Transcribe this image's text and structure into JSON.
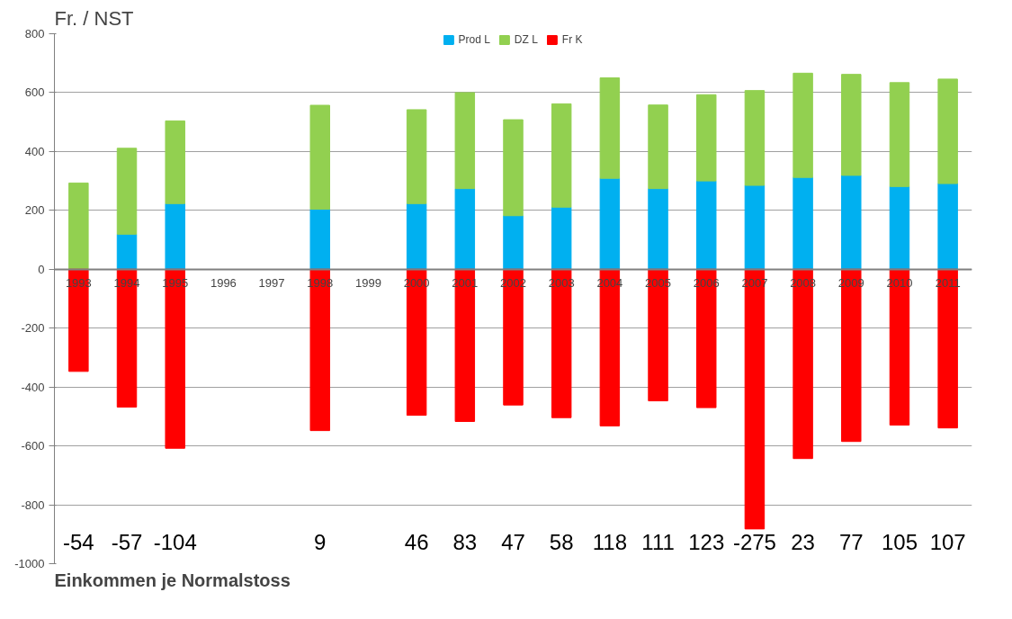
{
  "chart_data": {
    "type": "bar",
    "title": "Einkommen je Normalstoss",
    "ylabel": "Fr. / NST",
    "categories": [
      "1993",
      "1994",
      "1995",
      "1996",
      "1997",
      "1998",
      "1999",
      "2000",
      "2001",
      "2002",
      "2003",
      "2004",
      "2005",
      "2006",
      "2007",
      "2008",
      "2009",
      "2010",
      "2011"
    ],
    "stacked": true,
    "series": [
      {
        "name": "Prod L",
        "color": "#00b0f0",
        "values": [
          0,
          119,
          223,
          null,
          null,
          204,
          null,
          223,
          274,
          182,
          211,
          309,
          274,
          300,
          285,
          312,
          319,
          281,
          291
        ]
      },
      {
        "name": "DZ L",
        "color": "#92d050",
        "values": [
          293,
          292,
          281,
          null,
          null,
          353,
          null,
          319,
          326,
          326,
          351,
          341,
          284,
          293,
          322,
          354,
          343,
          353,
          355
        ]
      },
      {
        "name": "Fr K",
        "color": "#ff0000",
        "values": [
          -347,
          -468,
          -608,
          null,
          null,
          -548,
          null,
          -496,
          -517,
          -461,
          -504,
          -532,
          -447,
          -470,
          -882,
          -643,
          -585,
          -529,
          -539
        ]
      }
    ],
    "annotations": [
      "-54",
      "-57",
      "-104",
      "9",
      "46",
      "83",
      "47",
      "58",
      "118",
      "111",
      "123",
      "-275",
      "23",
      "77",
      "105",
      "107"
    ],
    "ylim": [
      -1000,
      800
    ],
    "yticks": [
      -1000,
      -800,
      -600,
      -400,
      -200,
      0,
      200,
      400,
      600,
      800
    ],
    "grid": "y",
    "legend": "top"
  }
}
